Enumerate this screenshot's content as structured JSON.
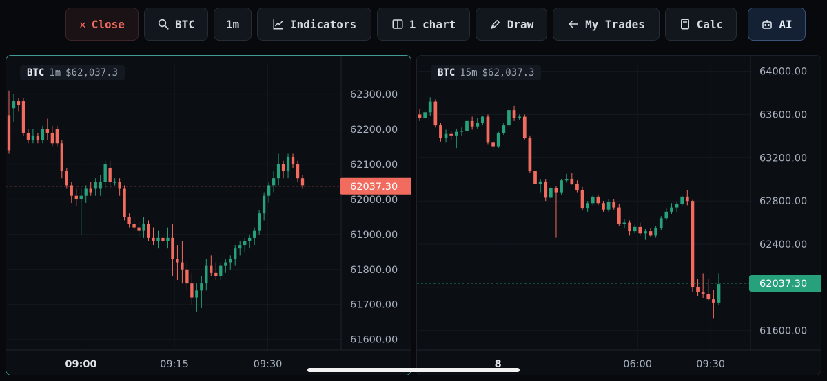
{
  "toolbar": {
    "close_label": "Close",
    "symbol_label": "BTC",
    "timeframe_label": "1m",
    "indicators_label": "Indicators",
    "layout_label": "1 chart",
    "draw_label": "Draw",
    "mytrades_label": "My Trades",
    "calc_label": "Calc",
    "ai_label": "AI"
  },
  "colors": {
    "up": "#26a17b",
    "down": "#f26b5f",
    "accent": "#3f9a92",
    "ai_border": "#3a5478"
  },
  "icons": {
    "close": "close-icon",
    "symbol": "search-icon",
    "indicators": "line-chart-icon",
    "layout": "split-panel-icon",
    "draw": "pen-icon",
    "mytrades": "arrow-left-icon",
    "calc": "calculator-icon",
    "ai": "robot-icon"
  },
  "charts": [
    {
      "symbol": "BTC",
      "timeframe": "1m",
      "price_label": "$62,037.3",
      "active": true,
      "price_tag": "62037.30",
      "price_tag_color": "#f26b5f",
      "current_price": 62037.3,
      "y_ticks": [
        "62300.00",
        "62200.00",
        "62100.00",
        "62000.00",
        "61900.00",
        "61800.00",
        "61700.00",
        "61600.00"
      ],
      "x_ticks": [
        {
          "label": "09:00",
          "bold": true,
          "pos": 0.22
        },
        {
          "label": "09:15",
          "bold": false,
          "pos": 0.5
        },
        {
          "label": "09:30",
          "bold": false,
          "pos": 0.78
        }
      ],
      "ylim": [
        61570,
        62390
      ],
      "candles": [
        [
          62240,
          62310,
          62130,
          62140
        ],
        [
          62260,
          62300,
          62220,
          62280
        ],
        [
          62280,
          62290,
          62250,
          62270
        ],
        [
          62280,
          62290,
          62180,
          62190
        ],
        [
          62190,
          62200,
          62160,
          62170
        ],
        [
          62170,
          62200,
          62160,
          62180
        ],
        [
          62180,
          62190,
          62160,
          62170
        ],
        [
          62170,
          62210,
          62160,
          62200
        ],
        [
          62200,
          62230,
          62170,
          62190
        ],
        [
          62190,
          62210,
          62150,
          62160
        ],
        [
          62200,
          62210,
          62150,
          62160
        ],
        [
          62160,
          62170,
          62060,
          62080
        ],
        [
          62080,
          62090,
          62030,
          62040
        ],
        [
          62040,
          62050,
          61990,
          62010
        ],
        [
          62010,
          62030,
          61980,
          62000
        ],
        [
          62000,
          62030,
          61900,
          62010
        ],
        [
          62010,
          62040,
          61990,
          62030
        ],
        [
          62030,
          62050,
          62010,
          62020
        ],
        [
          62030,
          62060,
          62010,
          62050
        ],
        [
          62030,
          62070,
          62010,
          62050
        ],
        [
          62050,
          62110,
          62030,
          62100
        ],
        [
          62090,
          62110,
          62030,
          62050
        ],
        [
          62050,
          62060,
          62040,
          62050
        ],
        [
          62050,
          62060,
          62010,
          62030
        ],
        [
          62030,
          62040,
          61940,
          61950
        ],
        [
          61950,
          61960,
          61920,
          61930
        ],
        [
          61930,
          61950,
          61910,
          61920
        ],
        [
          61920,
          61940,
          61890,
          61910
        ],
        [
          61910,
          61950,
          61890,
          61930
        ],
        [
          61930,
          61940,
          61880,
          61890
        ],
        [
          61890,
          61920,
          61870,
          61880
        ],
        [
          61880,
          61910,
          61860,
          61890
        ],
        [
          61890,
          61900,
          61870,
          61880
        ],
        [
          61880,
          61920,
          61860,
          61890
        ],
        [
          61890,
          61930,
          61780,
          61830
        ],
        [
          61830,
          61870,
          61770,
          61820
        ],
        [
          61820,
          61880,
          61760,
          61800
        ],
        [
          61800,
          61820,
          61740,
          61760
        ],
        [
          61760,
          61790,
          61700,
          61720
        ],
        [
          61720,
          61760,
          61680,
          61740
        ],
        [
          61740,
          61780,
          61690,
          61760
        ],
        [
          61760,
          61830,
          61740,
          61810
        ],
        [
          61810,
          61840,
          61780,
          61790
        ],
        [
          61790,
          61820,
          61770,
          61780
        ],
        [
          61780,
          61820,
          61770,
          61810
        ],
        [
          61810,
          61830,
          61790,
          61820
        ],
        [
          61820,
          61840,
          61800,
          61830
        ],
        [
          61830,
          61870,
          61810,
          61860
        ],
        [
          61860,
          61880,
          61840,
          61870
        ],
        [
          61870,
          61890,
          61850,
          61880
        ],
        [
          61880,
          61900,
          61860,
          61890
        ],
        [
          61890,
          61920,
          61870,
          61910
        ],
        [
          61910,
          61970,
          61900,
          61960
        ],
        [
          61960,
          62020,
          61940,
          62010
        ],
        [
          62010,
          62050,
          61990,
          62040
        ],
        [
          62040,
          62080,
          62020,
          62060
        ],
        [
          62060,
          62130,
          62040,
          62100
        ],
        [
          62100,
          62110,
          62060,
          62080
        ],
        [
          62080,
          62130,
          62060,
          62120
        ],
        [
          62120,
          62130,
          62090,
          62100
        ],
        [
          62100,
          62110,
          62050,
          62060
        ],
        [
          62060,
          62070,
          62030,
          62040
        ]
      ]
    },
    {
      "symbol": "BTC",
      "timeframe": "15m",
      "price_label": "$62,037.3",
      "active": false,
      "price_tag": "62037.30",
      "price_tag_color": "#26a17b",
      "current_price": 62037.3,
      "y_ticks": [
        "64000.00",
        "63600.00",
        "63200.00",
        "62800.00",
        "62400.00",
        "62000.00",
        "61600.00"
      ],
      "x_ticks": [
        {
          "label": "8",
          "bold": true,
          "pos": 0.24
        },
        {
          "label": "06:00",
          "bold": false,
          "pos": 0.66
        },
        {
          "label": "09:30",
          "bold": false,
          "pos": 0.88
        }
      ],
      "ylim": [
        61420,
        64080
      ],
      "candles": [
        [
          63600,
          63650,
          63540,
          63570
        ],
        [
          63570,
          63640,
          63560,
          63620
        ],
        [
          63620,
          63760,
          63590,
          63720
        ],
        [
          63720,
          63740,
          63480,
          63500
        ],
        [
          63500,
          63520,
          63350,
          63380
        ],
        [
          63380,
          63460,
          63340,
          63420
        ],
        [
          63420,
          63450,
          63360,
          63400
        ],
        [
          63400,
          63470,
          63290,
          63440
        ],
        [
          63440,
          63480,
          63400,
          63450
        ],
        [
          63450,
          63560,
          63430,
          63540
        ],
        [
          63540,
          63580,
          63460,
          63490
        ],
        [
          63490,
          63570,
          63470,
          63520
        ],
        [
          63520,
          63590,
          63500,
          63580
        ],
        [
          63580,
          63600,
          63320,
          63340
        ],
        [
          63340,
          63360,
          63270,
          63300
        ],
        [
          63300,
          63440,
          63290,
          63430
        ],
        [
          63430,
          63520,
          63410,
          63500
        ],
        [
          63500,
          63660,
          63480,
          63640
        ],
        [
          63640,
          63680,
          63540,
          63570
        ],
        [
          63570,
          63600,
          63550,
          63580
        ],
        [
          63580,
          63600,
          63370,
          63380
        ],
        [
          63380,
          63400,
          63060,
          63080
        ],
        [
          63080,
          63100,
          62940,
          62960
        ],
        [
          62960,
          63000,
          62880,
          62980
        ],
        [
          62980,
          63000,
          62800,
          62830
        ],
        [
          62830,
          62940,
          62820,
          62920
        ],
        [
          62920,
          62940,
          62460,
          62880
        ],
        [
          62880,
          63000,
          62860,
          62990
        ],
        [
          62990,
          63050,
          62970,
          63000
        ],
        [
          63000,
          63060,
          62950,
          62960
        ],
        [
          62960,
          62990,
          62880,
          62900
        ],
        [
          62900,
          62930,
          62710,
          62730
        ],
        [
          62730,
          62800,
          62700,
          62780
        ],
        [
          62780,
          62860,
          62760,
          62840
        ],
        [
          62840,
          62860,
          62760,
          62780
        ],
        [
          62780,
          62800,
          62700,
          62720
        ],
        [
          62720,
          62820,
          62700,
          62790
        ],
        [
          62790,
          62820,
          62720,
          62740
        ],
        [
          62740,
          62770,
          62570,
          62590
        ],
        [
          62590,
          62630,
          62550,
          62600
        ],
        [
          62600,
          62620,
          62480,
          62520
        ],
        [
          62520,
          62580,
          62500,
          62560
        ],
        [
          62560,
          62600,
          62480,
          62500
        ],
        [
          62500,
          62540,
          62440,
          62520
        ],
        [
          62520,
          62550,
          62470,
          62480
        ],
        [
          62480,
          62570,
          62460,
          62550
        ],
        [
          62550,
          62660,
          62530,
          62640
        ],
        [
          62640,
          62730,
          62620,
          62700
        ],
        [
          62700,
          62780,
          62680,
          62740
        ],
        [
          62740,
          62790,
          62700,
          62770
        ],
        [
          62770,
          62860,
          62750,
          62840
        ],
        [
          62840,
          62900,
          62760,
          62800
        ],
        [
          62800,
          62810,
          61960,
          62000
        ],
        [
          62000,
          62080,
          61920,
          61960
        ],
        [
          61960,
          62130,
          61900,
          61940
        ],
        [
          61940,
          62080,
          61880,
          61890
        ],
        [
          61890,
          61980,
          61710,
          61860
        ],
        [
          61860,
          62130,
          61840,
          62030
        ]
      ]
    }
  ]
}
